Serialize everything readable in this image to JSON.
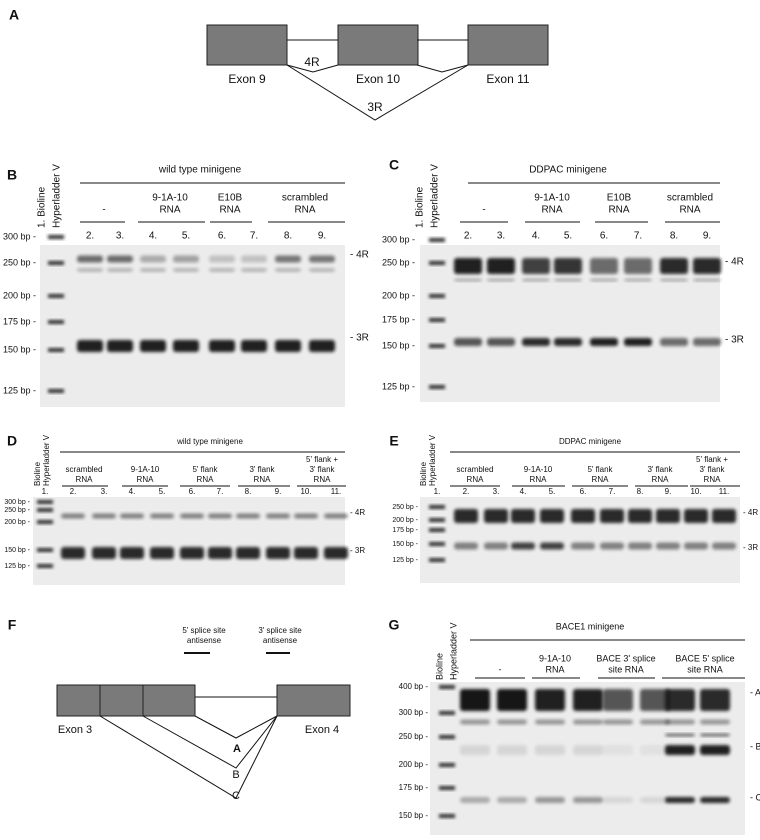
{
  "panel_a": {
    "label": "A",
    "exons": [
      "Exon 9",
      "Exon 10",
      "Exon 11"
    ],
    "isoforms": [
      "4R",
      "3R"
    ]
  },
  "panel_b": {
    "label": "B",
    "ladder": [
      "1. Bioline",
      "Hyperladder V"
    ],
    "header": "wild type minigene",
    "groups": [
      [
        "-"
      ],
      [
        "9-1A-10",
        "RNA"
      ],
      [
        "E10B",
        "RNA"
      ],
      [
        "scrambled",
        "RNA"
      ]
    ],
    "lanes": [
      "2.",
      "3.",
      "4.",
      "5.",
      "6.",
      "7.",
      "8.",
      "9."
    ],
    "sizes": [
      "300 bp -",
      "250 bp -",
      "200 bp -",
      "175 bp -",
      "150 bp -",
      "125 bp -"
    ],
    "bands": [
      "- 4R",
      "- 3R"
    ]
  },
  "panel_c": {
    "label": "C",
    "ladder": [
      "1. Bioline",
      "Hyperladder V"
    ],
    "header": "DDPAC minigene",
    "groups": [
      [
        "-"
      ],
      [
        "9-1A-10",
        "RNA"
      ],
      [
        "E10B",
        "RNA"
      ],
      [
        "scrambled",
        "RNA"
      ]
    ],
    "lanes": [
      "2.",
      "3.",
      "4.",
      "5.",
      "6.",
      "7.",
      "8.",
      "9."
    ],
    "sizes": [
      "300 bp -",
      "250 bp -",
      "200 bp -",
      "175 bp -",
      "150 bp -",
      "125 bp -"
    ],
    "bands": [
      "- 4R",
      "- 3R"
    ]
  },
  "panel_d": {
    "label": "D",
    "ladder": [
      "Bioline",
      "Hyperladder V"
    ],
    "header": "wild type minigene",
    "groups": [
      [
        "scrambled",
        "RNA"
      ],
      [
        "9-1A-10",
        "RNA"
      ],
      [
        "5' flank",
        "RNA"
      ],
      [
        "3' flank",
        "RNA"
      ],
      [
        "5' flank +",
        "3' flank",
        "RNA"
      ]
    ],
    "lanes": [
      "1.",
      "2.",
      "3.",
      "4.",
      "5.",
      "6.",
      "7.",
      "8.",
      "9.",
      "10.",
      "11."
    ],
    "sizes": [
      "300 bp -",
      "250 bp -",
      "200 bp -",
      "150 bp -",
      "125 bp -"
    ],
    "bands": [
      "- 4R",
      "- 3R"
    ]
  },
  "panel_e": {
    "label": "E",
    "ladder": [
      "Bioline",
      "Hyperladder V"
    ],
    "header": "DDPAC minigene",
    "groups": [
      [
        "scrambled",
        "RNA"
      ],
      [
        "9-1A-10",
        "RNA"
      ],
      [
        "5' flank",
        "RNA"
      ],
      [
        "3' flank",
        "RNA"
      ],
      [
        "5' flank +",
        "3' flank",
        "RNA"
      ]
    ],
    "lanes": [
      "1.",
      "2.",
      "3.",
      "4.",
      "5.",
      "6.",
      "7.",
      "8.",
      "9.",
      "10.",
      "11."
    ],
    "sizes": [
      "250 bp -",
      "200 bp -",
      "175 bp -",
      "150 bp -",
      "125 bp -"
    ],
    "bands": [
      "- 4R",
      "- 3R"
    ]
  },
  "panel_f": {
    "label": "F",
    "exons": [
      "Exon 3",
      "Exon 4"
    ],
    "antisense": [
      [
        "5' splice site",
        "antisense"
      ],
      [
        "3' splice site",
        "antisense"
      ]
    ],
    "isoforms": [
      "A",
      "B",
      "C"
    ]
  },
  "panel_g": {
    "label": "G",
    "ladder": [
      "Bioline",
      "Hyperladder V"
    ],
    "header": "BACE1 minigene",
    "groups": [
      [
        "-"
      ],
      [
        "9-1A-10",
        "RNA"
      ],
      [
        "BACE 3' splice",
        "site RNA"
      ],
      [
        "BACE 5' splice",
        "site RNA"
      ]
    ],
    "sizes": [
      "400 bp -",
      "300 bp -",
      "250 bp -",
      "200 bp -",
      "175 bp -",
      "150 bp -"
    ],
    "bands": [
      "- A",
      "- B",
      "- C"
    ]
  }
}
